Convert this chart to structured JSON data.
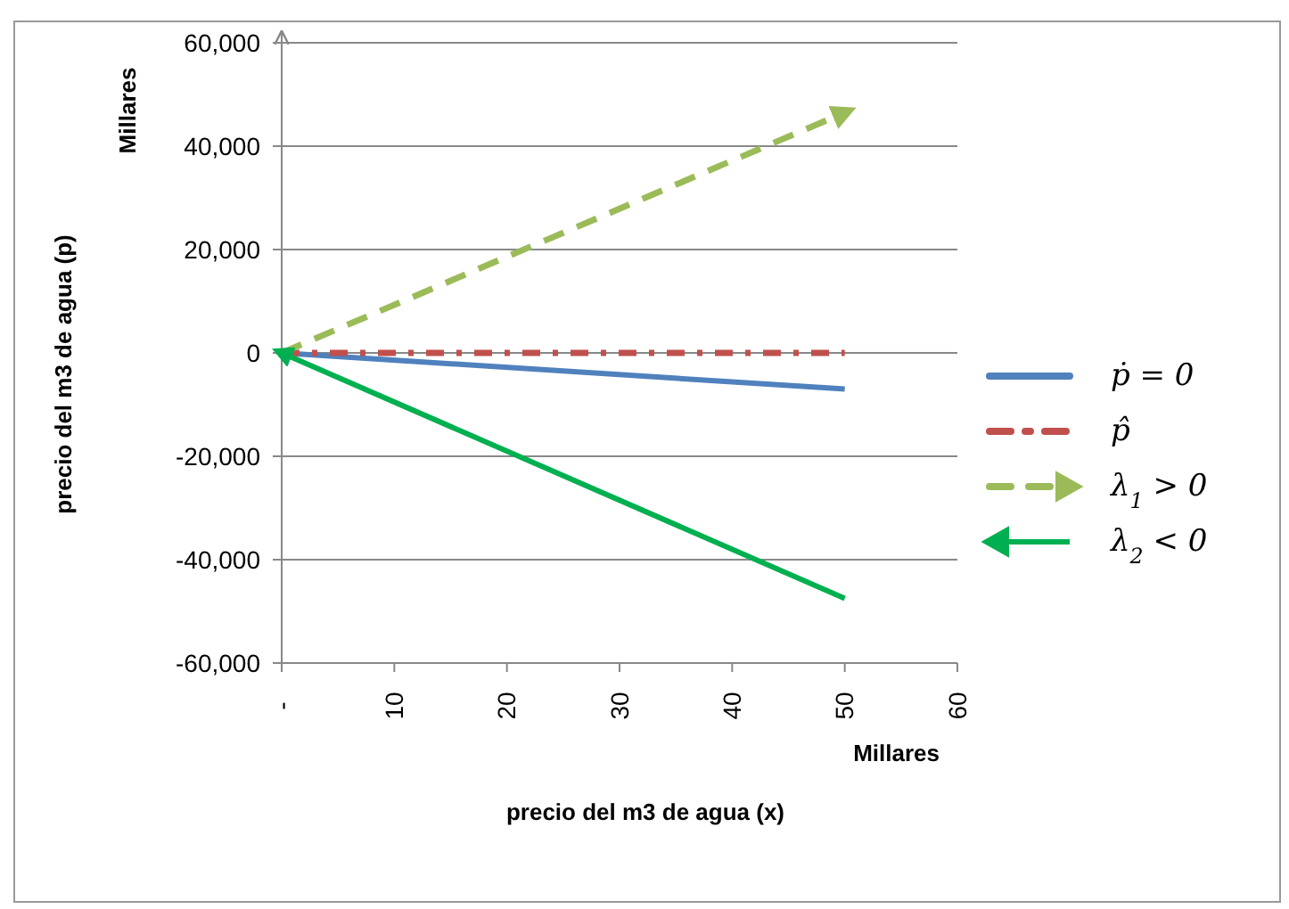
{
  "chart_data": {
    "type": "line",
    "xlabel": "precio del m3 de agua (x)",
    "ylabel": "precio del m3 de agua (p)",
    "annotations": [
      "Millares",
      "Millares"
    ],
    "x": [
      0,
      50
    ],
    "xlim": [
      0,
      60
    ],
    "xticks": [
      {
        "value": 0,
        "label": "-"
      },
      10,
      20,
      30,
      40,
      50,
      60
    ],
    "ylim": [
      -60000,
      60000
    ],
    "yticks": [
      {
        "value": -60000,
        "label": "-60,000"
      },
      {
        "value": -40000,
        "label": "-40,000"
      },
      {
        "value": -20000,
        "label": "-20,000"
      },
      0,
      {
        "value": 20000,
        "label": "20,000"
      },
      {
        "value": 40000,
        "label": "40,000"
      },
      {
        "value": 60000,
        "label": "60,000"
      }
    ],
    "grid": "y",
    "legend": "right",
    "marker": "none",
    "series": [
      {
        "name": "ṗ = 0",
        "color": "#4f81bd",
        "line_style": "solid",
        "values": [
          0,
          -7000
        ]
      },
      {
        "name": "p̂",
        "color": "#c0504d",
        "line_style": "dotted",
        "values": [
          0,
          0
        ]
      },
      {
        "name": "λ$_{1}$ > 0",
        "color": "#9bbb59",
        "line_style": "dashed",
        "values": [
          0,
          46500
        ]
      },
      {
        "name": "λ$_{2}$ < 0",
        "color": "#00b050",
        "line_style": "solid",
        "values": [
          0,
          -47500
        ]
      }
    ]
  }
}
